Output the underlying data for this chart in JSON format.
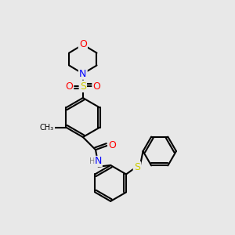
{
  "background_color": "#e8e8e8",
  "bond_color": "#000000",
  "figsize": [
    3.0,
    3.0
  ],
  "dpi": 100,
  "atom_colors": {
    "O": "#ff0000",
    "N": "#0000ff",
    "S": "#cccc00",
    "C": "#000000",
    "H": "#808080"
  }
}
